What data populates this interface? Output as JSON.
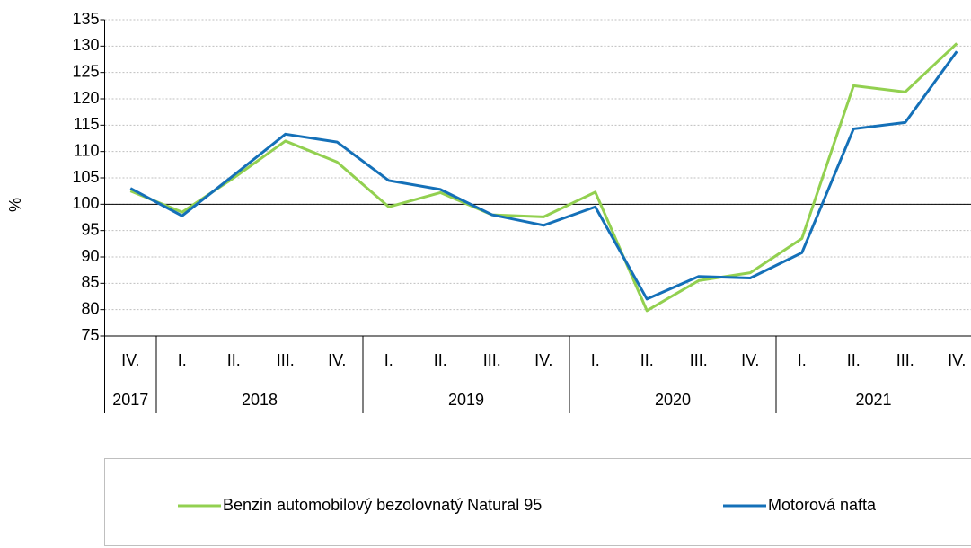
{
  "chart_data": {
    "type": "line",
    "ylabel": "%",
    "groups": [
      {
        "name": "2017",
        "categories": [
          "IV."
        ]
      },
      {
        "name": "2018",
        "categories": [
          "I.",
          "II.",
          "III.",
          "IV."
        ]
      },
      {
        "name": "2019",
        "categories": [
          "I.",
          "II.",
          "III.",
          "IV."
        ]
      },
      {
        "name": "2020",
        "categories": [
          "I.",
          "II.",
          "III.",
          "IV."
        ]
      },
      {
        "name": "2021",
        "categories": [
          "I.",
          "II.",
          "III.",
          "IV."
        ]
      }
    ],
    "series": [
      {
        "name": "Benzin automobilový bezolovnatý Natural 95",
        "color": "#92d050",
        "values": [
          102.5,
          98.5,
          105,
          112,
          108,
          99.5,
          102.2,
          98,
          97.6,
          102.3,
          79.8,
          85.5,
          87,
          93.5,
          122.5,
          121.3,
          130.5
        ]
      },
      {
        "name": "Motorová nafta",
        "color": "#1470b8",
        "values": [
          103,
          97.8,
          105.5,
          113.3,
          111.8,
          104.5,
          102.8,
          98,
          96,
          99.5,
          82,
          86.3,
          86,
          90.8,
          114.3,
          115.5,
          129
        ]
      }
    ],
    "ylim": [
      75,
      135
    ],
    "yticks": [
      75,
      80,
      85,
      90,
      95,
      100,
      105,
      110,
      115,
      120,
      125,
      130,
      135
    ],
    "reference_line": 100,
    "grid": true,
    "legend": "bottom"
  }
}
